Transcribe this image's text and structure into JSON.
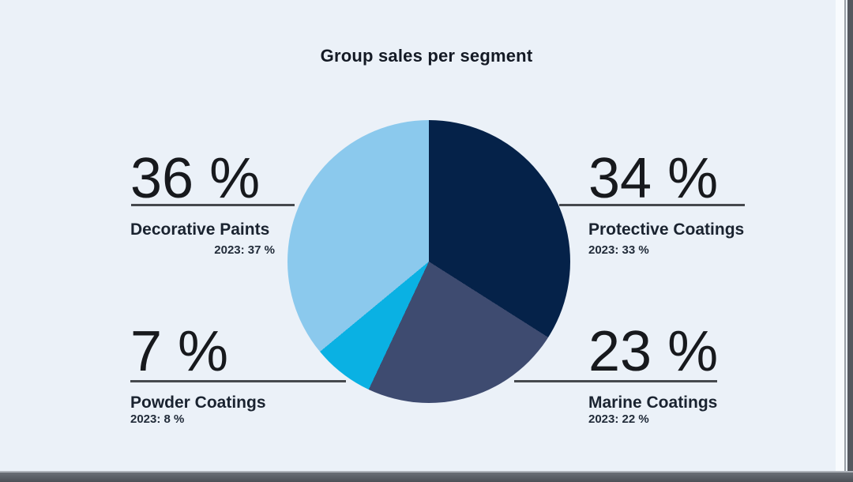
{
  "title": "Group sales per segment",
  "chart_data": {
    "type": "pie",
    "title": "Group sales per segment",
    "start_angle_deg": 0,
    "direction": "clockwise",
    "legend_position": "callouts",
    "segments": [
      {
        "label": "Protective Coatings",
        "value_pct": 34,
        "prior_year_note": "2023: 33 %",
        "color": "#052249"
      },
      {
        "label": "Marine Coatings",
        "value_pct": 23,
        "prior_year_note": "2023: 22 %",
        "color": "#3e4b70"
      },
      {
        "label": "Powder Coatings",
        "value_pct": 7,
        "prior_year_note": "2023: 8 %",
        "color": "#0ab1e3"
      },
      {
        "label": "Decorative Paints",
        "value_pct": 36,
        "prior_year_note": "2023: 37 %",
        "color": "#8bc9ed"
      }
    ]
  },
  "callouts": {
    "top_left": {
      "pct": "36 %",
      "label": "Decorative Paints",
      "prior": "2023: 37 %"
    },
    "top_right": {
      "pct": "34 %",
      "label": "Protective Coatings",
      "prior": "2023: 33 %"
    },
    "bottom_left": {
      "pct": "7 %",
      "label": "Powder Coatings",
      "prior": "2023: 8 %"
    },
    "bottom_right": {
      "pct": "23 %",
      "label": "Marine Coatings",
      "prior": "2023: 22 %"
    }
  },
  "colors": {
    "background": "#ebf1f8",
    "protective_coatings": "#052249",
    "marine_coatings": "#3e4b70",
    "powder_coatings": "#0ab1e3",
    "decorative_paints": "#8bc9ed",
    "callout_rule": "#46494e",
    "title_text": "#141a25",
    "window_chrome": "#54585f"
  }
}
